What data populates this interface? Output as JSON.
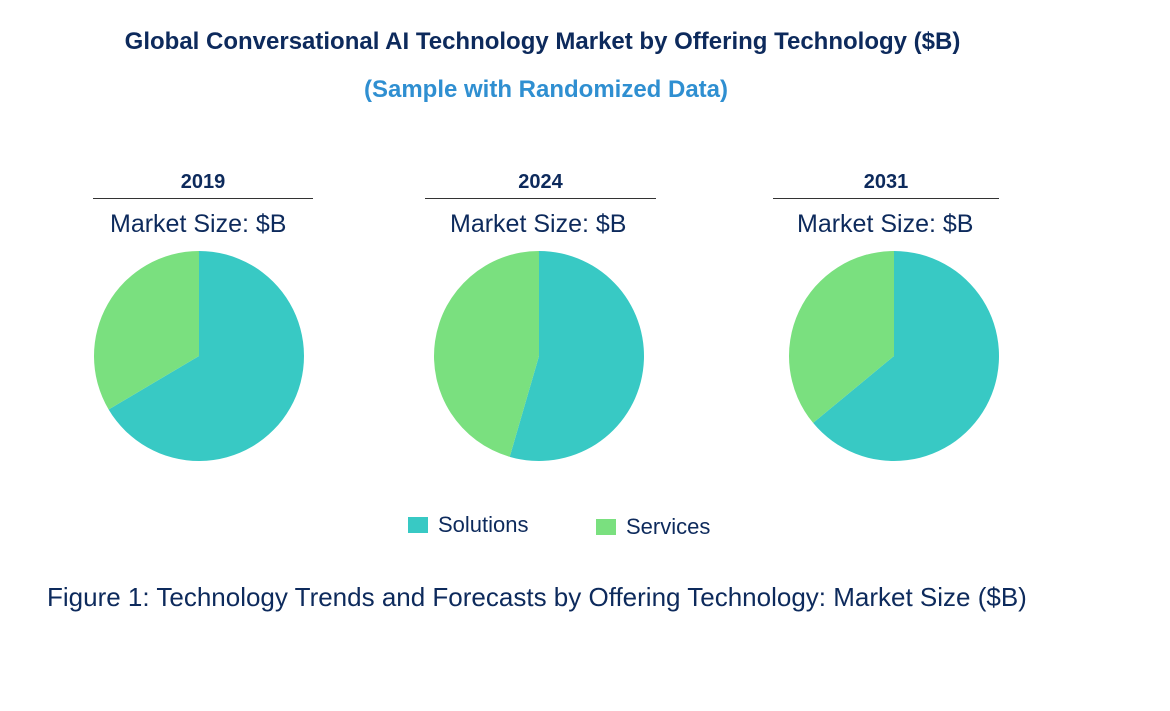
{
  "title": "Global Conversational AI Technology Market by Offering Technology ($B)",
  "subtitle": "(Sample with Randomized Data)",
  "caption": "Figure 1: Technology Trends and Forecasts by Offering Technology: Market Size ($B)",
  "colors": {
    "Solutions": "#38c9c4",
    "Services": "#7ae07f",
    "title": "#0d2a5c",
    "subtitle": "#2f8fd1"
  },
  "chart_data": [
    {
      "type": "pie",
      "title": "2019",
      "subtitle": "Market Size: $B",
      "categories": [
        "Solutions",
        "Services"
      ],
      "values": [
        66.5,
        33.5
      ]
    },
    {
      "type": "pie",
      "title": "2024",
      "subtitle": "Market Size: $B",
      "categories": [
        "Solutions",
        "Services"
      ],
      "values": [
        54.5,
        45.5
      ]
    },
    {
      "type": "pie",
      "title": "2031",
      "subtitle": "Market Size: $B",
      "categories": [
        "Solutions",
        "Services"
      ],
      "values": [
        64.0,
        36.0
      ]
    }
  ],
  "legend": {
    "items": [
      {
        "label": "Solutions",
        "color": "#38c9c4"
      },
      {
        "label": "Services",
        "color": "#7ae07f"
      }
    ]
  }
}
